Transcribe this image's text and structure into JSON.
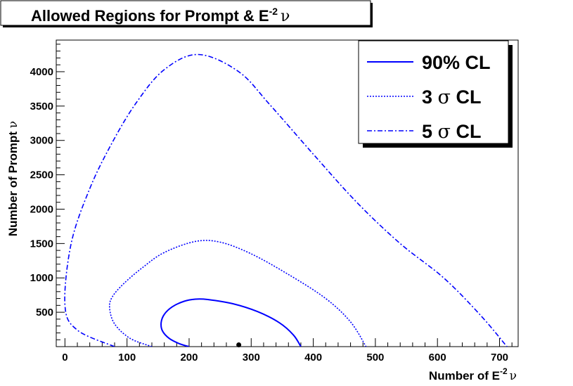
{
  "chart_data": {
    "type": "line",
    "title": {
      "text": "Allowed Regions for Prompt & E",
      "sup": "-2",
      "greek": "ν"
    },
    "xlabel": {
      "text": "Number of E",
      "sup": "-2",
      "greek": "ν"
    },
    "ylabel": {
      "text": "Number of Prompt ",
      "greek": "ν"
    },
    "xlim": [
      -14,
      730
    ],
    "ylim": [
      0,
      4460
    ],
    "xticks": [
      0,
      100,
      200,
      300,
      400,
      500,
      600,
      700
    ],
    "yticks": [
      500,
      1000,
      1500,
      2000,
      2500,
      3000,
      3500,
      4000
    ],
    "xtick_labels": [
      "0",
      "100",
      "200",
      "300",
      "400",
      "500",
      "600",
      "700"
    ],
    "ytick_labels": [
      "500",
      "1000",
      "1500",
      "2000",
      "2500",
      "3000",
      "3500",
      "4000"
    ],
    "legend_position": "top-right",
    "color": "#0000ff",
    "series": [
      {
        "name": "90% CL",
        "legend_parts": [
          "90% CL"
        ],
        "style": "solid",
        "points": [
          [
            200,
            0
          ],
          [
            185,
            40
          ],
          [
            168,
            120
          ],
          [
            157,
            230
          ],
          [
            155,
            350
          ],
          [
            160,
            470
          ],
          [
            173,
            580
          ],
          [
            192,
            660
          ],
          [
            210,
            690
          ],
          [
            230,
            685
          ],
          [
            270,
            625
          ],
          [
            310,
            510
          ],
          [
            345,
            350
          ],
          [
            368,
            170
          ],
          [
            380,
            0
          ]
        ]
      },
      {
        "name": "3 σ CL",
        "legend_parts": [
          "3 ",
          "σ",
          " CL"
        ],
        "style": "dotted",
        "points": [
          [
            140,
            0
          ],
          [
            105,
            120
          ],
          [
            80,
            330
          ],
          [
            72,
            560
          ],
          [
            76,
            720
          ],
          [
            95,
            920
          ],
          [
            125,
            1150
          ],
          [
            160,
            1370
          ],
          [
            210,
            1530
          ],
          [
            250,
            1520
          ],
          [
            300,
            1350
          ],
          [
            360,
            1050
          ],
          [
            420,
            700
          ],
          [
            460,
            360
          ],
          [
            485,
            0
          ]
        ]
      },
      {
        "name": "5 σ CL",
        "legend_parts": [
          "5 ",
          "σ",
          " CL"
        ],
        "style": "dashdot",
        "points": [
          [
            80,
            0
          ],
          [
            20,
            240
          ],
          [
            0,
            600
          ],
          [
            10,
            1500
          ],
          [
            40,
            2300
          ],
          [
            75,
            2950
          ],
          [
            115,
            3550
          ],
          [
            160,
            4030
          ],
          [
            215,
            4250
          ],
          [
            280,
            4000
          ],
          [
            330,
            3520
          ],
          [
            400,
            2800
          ],
          [
            470,
            2100
          ],
          [
            540,
            1500
          ],
          [
            610,
            1000
          ],
          [
            670,
            450
          ],
          [
            712,
            0
          ]
        ]
      }
    ],
    "markers": [
      [
        280,
        15
      ]
    ]
  }
}
